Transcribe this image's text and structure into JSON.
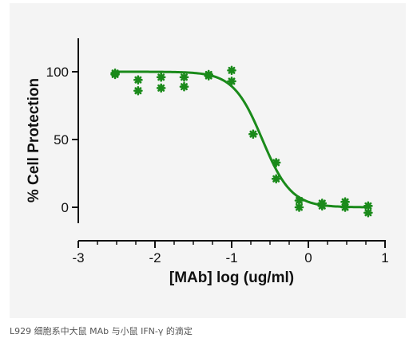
{
  "caption": "L929 细胞系中大鼠 MAb 与小鼠 IFN-γ 的滴定",
  "colors": {
    "background": "#f4f4f4",
    "series": "#1a8a1a",
    "axis": "#111111"
  },
  "chart_data": {
    "type": "scatter",
    "title": "",
    "xlabel": "[MAb] log (ug/ml)",
    "ylabel": "% Cell Protection",
    "xlim": [
      -3,
      1
    ],
    "ylim": [
      -20,
      125
    ],
    "xticks": [
      -3,
      -2,
      -1,
      0,
      1
    ],
    "xtick_labels": [
      "-3",
      "-2",
      "-1",
      "0",
      "1"
    ],
    "yticks": [
      0,
      50,
      100
    ],
    "ytick_labels": [
      "0",
      "50",
      "100"
    ],
    "grid": false,
    "marker": "asterisk",
    "series": [
      {
        "points": [
          {
            "x": -2.52,
            "y": 98
          },
          {
            "x": -2.52,
            "y": 99
          },
          {
            "x": -2.22,
            "y": 94
          },
          {
            "x": -2.22,
            "y": 86
          },
          {
            "x": -1.92,
            "y": 96
          },
          {
            "x": -1.92,
            "y": 88
          },
          {
            "x": -1.62,
            "y": 96
          },
          {
            "x": -1.62,
            "y": 89
          },
          {
            "x": -1.3,
            "y": 98
          },
          {
            "x": -1.3,
            "y": 97
          },
          {
            "x": -1.0,
            "y": 101
          },
          {
            "x": -1.0,
            "y": 93
          },
          {
            "x": -0.72,
            "y": 54
          },
          {
            "x": -0.42,
            "y": 33
          },
          {
            "x": -0.42,
            "y": 21
          },
          {
            "x": -0.12,
            "y": 5
          },
          {
            "x": -0.12,
            "y": 0
          },
          {
            "x": 0.18,
            "y": 3
          },
          {
            "x": 0.18,
            "y": 1
          },
          {
            "x": 0.48,
            "y": 4
          },
          {
            "x": 0.48,
            "y": 0
          },
          {
            "x": 0.78,
            "y": 1
          },
          {
            "x": 0.78,
            "y": -4
          }
        ],
        "fit": {
          "model": "4PL",
          "top": 100,
          "bottom": 0,
          "log_ic50": -0.6,
          "hill_slope": -2.3,
          "x_range": [
            -2.55,
            0.8
          ]
        }
      }
    ]
  }
}
